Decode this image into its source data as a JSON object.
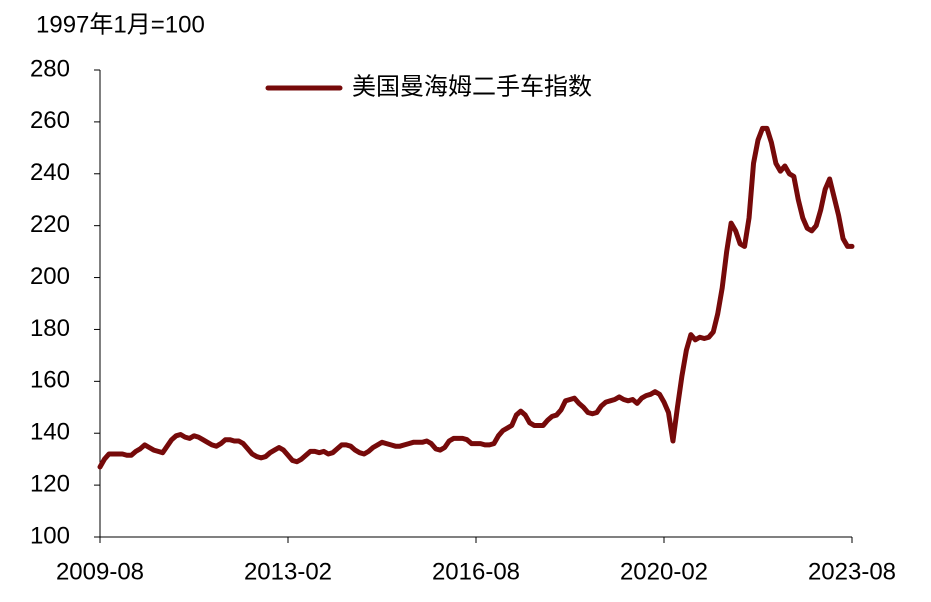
{
  "chart_data": {
    "type": "line",
    "ylabel": "1997年1月=100",
    "categories": [
      "2009-08",
      null,
      null,
      null,
      null,
      null,
      null,
      null,
      null,
      null,
      null,
      null,
      null,
      null,
      null,
      null,
      null,
      null,
      null,
      null,
      null,
      null,
      null,
      null,
      null,
      null,
      null,
      null,
      null,
      null,
      null,
      null,
      null,
      null,
      null,
      null,
      null,
      null,
      null,
      null,
      null,
      null,
      "2013-02",
      null,
      null,
      null,
      null,
      null,
      null,
      null,
      null,
      null,
      null,
      null,
      null,
      null,
      null,
      null,
      null,
      null,
      null,
      null,
      null,
      null,
      null,
      null,
      null,
      null,
      null,
      null,
      null,
      null,
      null,
      null,
      null,
      null,
      null,
      null,
      null,
      null,
      null,
      null,
      null,
      null,
      "2016-08",
      null,
      null,
      null,
      null,
      null,
      null,
      null,
      null,
      null,
      null,
      null,
      null,
      null,
      null,
      null,
      null,
      null,
      null,
      null,
      null,
      null,
      null,
      null,
      null,
      null,
      null,
      null,
      null,
      null,
      null,
      null,
      null,
      null,
      null,
      null,
      null,
      null,
      null,
      null,
      null,
      null,
      "2020-02",
      null,
      null,
      null,
      null,
      null,
      null,
      null,
      null,
      null,
      null,
      null,
      null,
      null,
      null,
      null,
      null,
      null,
      null,
      null,
      null,
      null,
      null,
      null,
      null,
      null,
      null,
      null,
      null,
      null,
      null,
      null,
      null,
      null,
      null,
      null,
      null,
      null,
      null,
      null,
      null,
      null,
      "2023-08"
    ],
    "series": [
      {
        "name": "美国曼海姆二手车指数",
        "color": "#760a0a",
        "values": [
          127,
          130,
          132,
          132,
          132,
          132,
          131.5,
          131.5,
          133,
          134,
          135.5,
          134.5,
          133.5,
          133,
          132.5,
          135,
          137.5,
          139,
          139.5,
          138.5,
          138,
          139,
          138.5,
          137.5,
          136.5,
          135.5,
          135,
          136,
          137.5,
          137.5,
          137,
          137,
          136,
          134,
          132,
          131,
          130.5,
          131,
          132.5,
          133.5,
          134.5,
          133.5,
          131.5,
          129.5,
          129,
          130,
          131.5,
          133,
          133,
          132.5,
          133,
          132,
          132.5,
          134,
          135.5,
          135.5,
          135,
          133.5,
          132.5,
          132,
          133,
          134.5,
          135.5,
          136.5,
          136,
          135.5,
          135,
          135,
          135.5,
          136,
          136.5,
          136.5,
          136.5,
          137,
          136,
          134,
          133.5,
          134.5,
          137,
          138,
          138,
          138,
          137.5,
          136,
          136,
          136,
          135.5,
          135.5,
          136,
          139,
          141,
          142,
          143,
          147,
          148.5,
          147,
          144,
          143,
          143,
          143,
          145,
          146.5,
          147,
          149,
          152.5,
          153,
          153.5,
          151.5,
          150,
          148,
          147.5,
          148,
          150.5,
          152,
          152.5,
          153,
          154,
          153,
          152.5,
          153,
          151.5,
          153.5,
          154.5,
          155,
          156,
          155,
          152,
          148,
          137,
          150,
          162,
          172,
          178,
          176,
          177,
          176.5,
          177,
          179,
          186,
          196,
          210,
          221,
          218,
          213,
          212,
          223,
          244,
          253,
          257.5,
          257.5,
          252,
          244,
          241,
          243,
          240,
          239,
          230,
          223,
          219,
          218,
          220,
          226,
          234,
          238,
          231,
          224,
          215,
          212,
          212
        ]
      }
    ],
    "ylim": [
      100,
      280
    ],
    "yticks": [
      100,
      120,
      140,
      160,
      180,
      200,
      220,
      240,
      260,
      280
    ],
    "legend": "upper center",
    "grid": false
  }
}
